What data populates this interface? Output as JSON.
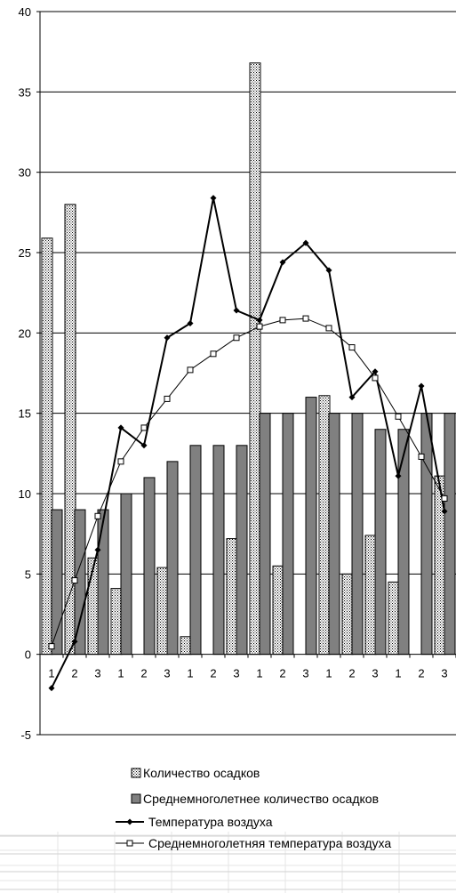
{
  "chart_data": {
    "type": "bar",
    "categories": [
      "1",
      "2",
      "3",
      "1",
      "2",
      "3",
      "1",
      "2",
      "3",
      "1",
      "2",
      "3",
      "1",
      "2",
      "3",
      "1",
      "2",
      "3"
    ],
    "ylim": [
      -5,
      40
    ],
    "yticks": [
      "-5",
      "0",
      "5",
      "10",
      "15",
      "20",
      "25",
      "30",
      "35",
      "40"
    ],
    "ytick_values": [
      -5,
      0,
      5,
      10,
      15,
      20,
      25,
      30,
      35,
      40
    ],
    "grid": true,
    "legend_position": "bottom",
    "series": [
      {
        "name": "Количество осадков",
        "kind": "bar",
        "pattern": "dotted",
        "color": "#ffffff",
        "values": [
          25.9,
          28.0,
          6.0,
          4.1,
          0.0,
          5.4,
          1.1,
          0.0,
          7.2,
          36.8,
          5.5,
          0.0,
          16.1,
          5.0,
          7.4,
          4.5,
          0.0,
          11.1
        ]
      },
      {
        "name": "Среднемноголетнее количество осадков",
        "kind": "bar",
        "color": "#808080",
        "values": [
          9,
          9,
          9,
          10,
          11,
          12,
          13,
          13,
          13,
          15,
          15,
          16,
          15,
          15,
          14,
          14,
          15,
          15
        ]
      },
      {
        "name": "Температура воздуха",
        "kind": "line",
        "marker": "diamond",
        "color": "#000000",
        "values": [
          -2.1,
          0.8,
          6.5,
          14.1,
          13.0,
          19.7,
          20.6,
          28.4,
          21.4,
          20.8,
          24.4,
          25.6,
          23.9,
          16.0,
          17.6,
          11.1,
          16.7,
          8.9
        ]
      },
      {
        "name": "Среднемноголетняя температура воздуха",
        "kind": "line",
        "marker": "square-open",
        "color": "#000000",
        "values": [
          0.5,
          4.6,
          8.6,
          12.0,
          14.1,
          15.9,
          17.7,
          18.7,
          19.7,
          20.4,
          20.8,
          20.9,
          20.3,
          19.1,
          17.2,
          14.8,
          12.3,
          9.7
        ]
      }
    ]
  }
}
